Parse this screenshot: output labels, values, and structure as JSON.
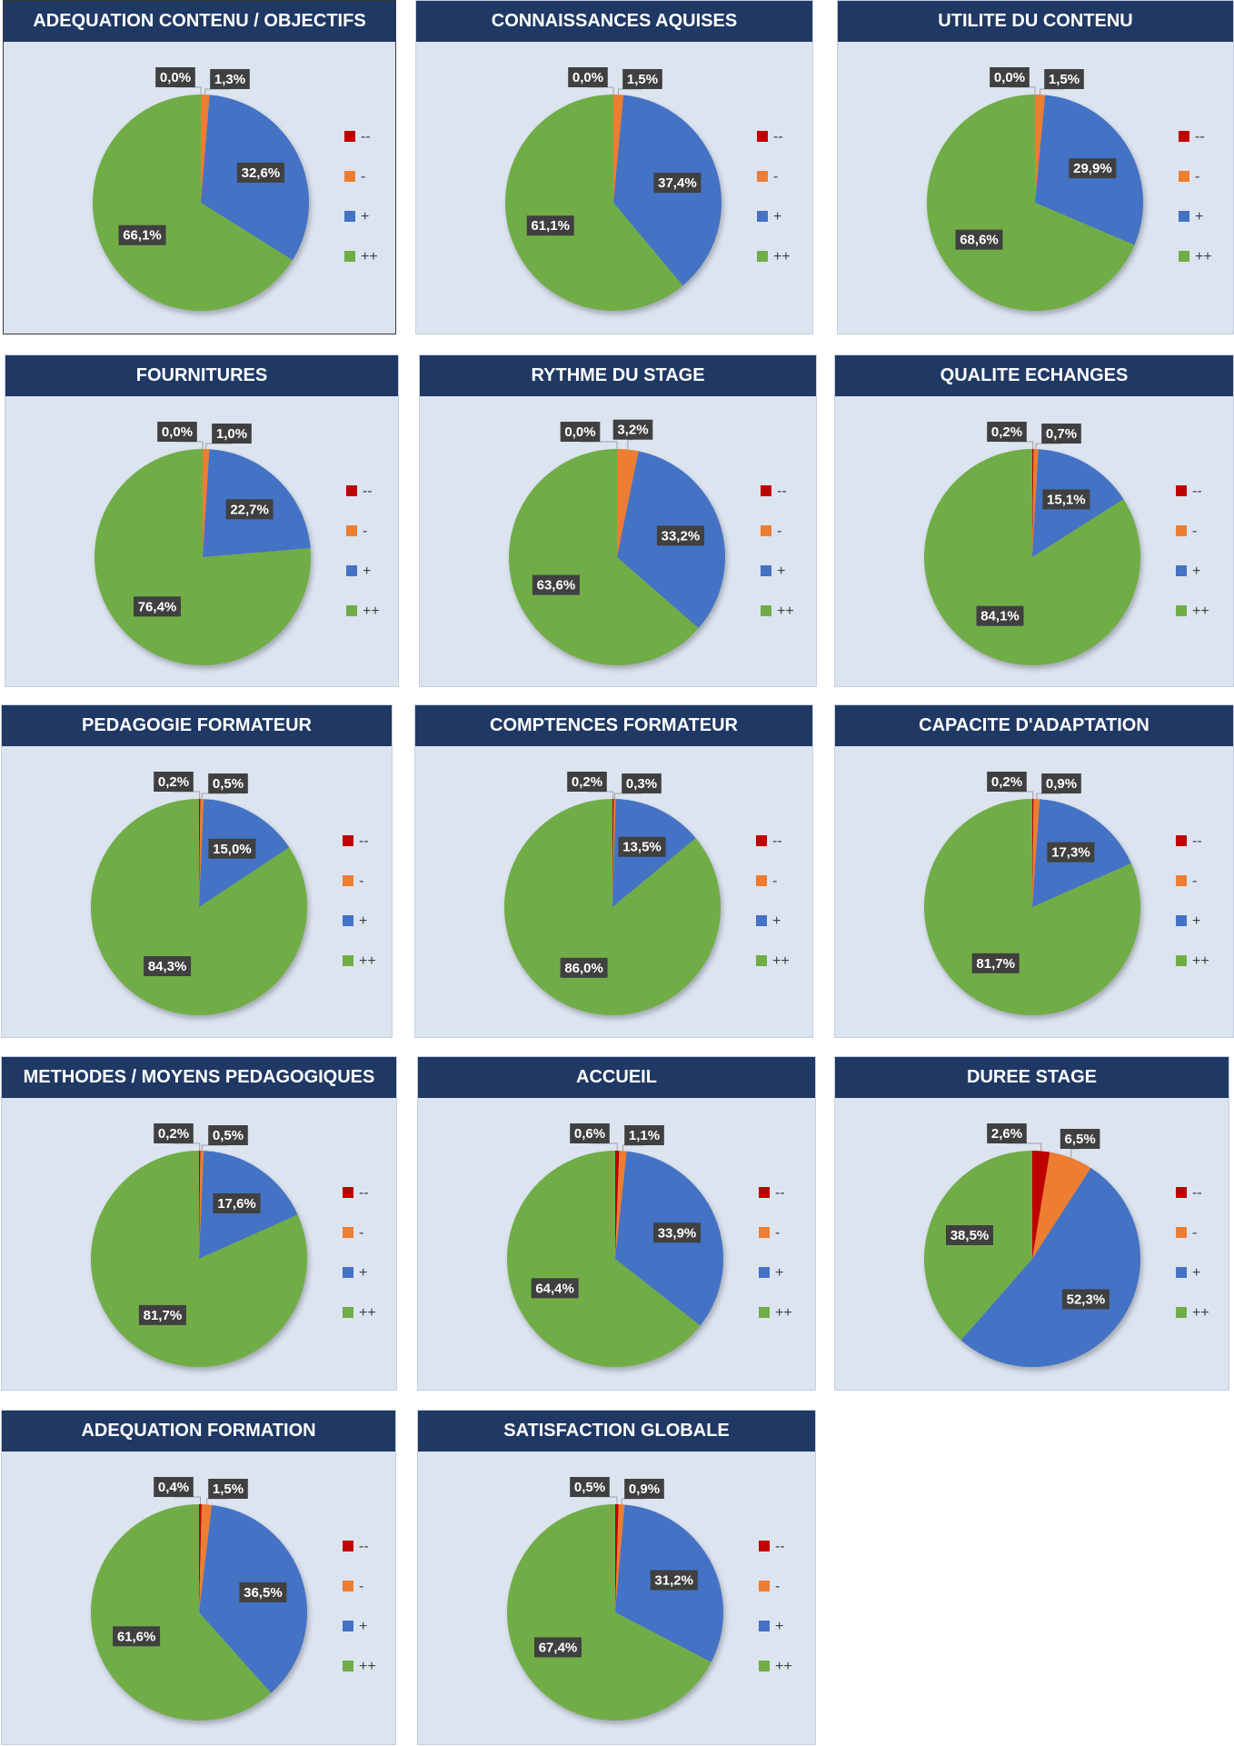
{
  "chart_data": [
    {
      "type": "pie",
      "title": "ADEQUATION CONTENU / OBJECTIFS",
      "categories": [
        "--",
        "-",
        "+",
        "++"
      ],
      "values": [
        0.0,
        1.3,
        32.6,
        66.1
      ],
      "labels": [
        "0,0%",
        "1,3%",
        "32,6%",
        "66,1%"
      ]
    },
    {
      "type": "pie",
      "title": "CONNAISSANCES AQUISES",
      "categories": [
        "--",
        "-",
        "+",
        "++"
      ],
      "values": [
        0.0,
        1.5,
        37.4,
        61.1
      ],
      "labels": [
        "0,0%",
        "1,5%",
        "37,4%",
        "61,1%"
      ]
    },
    {
      "type": "pie",
      "title": "UTILITE DU CONTENU",
      "categories": [
        "--",
        "-",
        "+",
        "++"
      ],
      "values": [
        0.0,
        1.5,
        29.9,
        68.6
      ],
      "labels": [
        "0,0%",
        "1,5%",
        "29,9%",
        "68,6%"
      ]
    },
    {
      "type": "pie",
      "title": "FOURNITURES",
      "categories": [
        "--",
        "-",
        "+",
        "++"
      ],
      "values": [
        0.0,
        1.0,
        22.7,
        76.4
      ],
      "labels": [
        "0,0%",
        "1,0%",
        "22,7%",
        "76,4%"
      ]
    },
    {
      "type": "pie",
      "title": "RYTHME DU STAGE",
      "categories": [
        "--",
        "-",
        "+",
        "++"
      ],
      "values": [
        0.0,
        3.2,
        33.2,
        63.6
      ],
      "labels": [
        "0,0%",
        "3,2%",
        "33,2%",
        "63,6%"
      ]
    },
    {
      "type": "pie",
      "title": "QUALITE ECHANGES",
      "categories": [
        "--",
        "-",
        "+",
        "++"
      ],
      "values": [
        0.2,
        0.7,
        15.1,
        84.1
      ],
      "labels": [
        "0,2%",
        "0,7%",
        "15,1%",
        "84,1%"
      ]
    },
    {
      "type": "pie",
      "title": "PEDAGOGIE FORMATEUR",
      "categories": [
        "--",
        "-",
        "+",
        "++"
      ],
      "values": [
        0.2,
        0.5,
        15.0,
        84.3
      ],
      "labels": [
        "0,2%",
        "0,5%",
        "15,0%",
        "84,3%"
      ]
    },
    {
      "type": "pie",
      "title": "COMPTENCES FORMATEUR",
      "categories": [
        "--",
        "-",
        "+",
        "++"
      ],
      "values": [
        0.2,
        0.3,
        13.5,
        86.0
      ],
      "labels": [
        "0,2%",
        "0,3%",
        "13,5%",
        "86,0%"
      ]
    },
    {
      "type": "pie",
      "title": "CAPACITE D'ADAPTATION",
      "categories": [
        "--",
        "-",
        "+",
        "++"
      ],
      "values": [
        0.2,
        0.9,
        17.3,
        81.7
      ],
      "labels": [
        "0,2%",
        "0,9%",
        "17,3%",
        "81,7%"
      ]
    },
    {
      "type": "pie",
      "title": "METHODES / MOYENS PEDAGOGIQUES",
      "categories": [
        "--",
        "-",
        "+",
        "++"
      ],
      "values": [
        0.2,
        0.5,
        17.6,
        81.7
      ],
      "labels": [
        "0,2%",
        "0,5%",
        "17,6%",
        "81,7%"
      ]
    },
    {
      "type": "pie",
      "title": "ACCUEIL",
      "categories": [
        "--",
        "-",
        "+",
        "++"
      ],
      "values": [
        0.6,
        1.1,
        33.9,
        64.4
      ],
      "labels": [
        "0,6%",
        "1,1%",
        "33,9%",
        "64,4%"
      ]
    },
    {
      "type": "pie",
      "title": "DUREE STAGE",
      "categories": [
        "--",
        "-",
        "+",
        "++"
      ],
      "values": [
        2.6,
        6.5,
        52.3,
        38.5
      ],
      "labels": [
        "2,6%",
        "6,5%",
        "52,3%",
        "38,5%"
      ]
    },
    {
      "type": "pie",
      "title": "ADEQUATION FORMATION",
      "categories": [
        "--",
        "-",
        "+",
        "++"
      ],
      "values": [
        0.4,
        1.5,
        36.5,
        61.6
      ],
      "labels": [
        "0,4%",
        "1,5%",
        "36,5%",
        "61,6%"
      ]
    },
    {
      "type": "pie",
      "title": "SATISFACTION GLOBALE",
      "categories": [
        "--",
        "-",
        "+",
        "++"
      ],
      "values": [
        0.5,
        0.9,
        31.2,
        67.4
      ],
      "labels": [
        "0,5%",
        "0,9%",
        "31,2%",
        "67,4%"
      ]
    }
  ],
  "colors": {
    "--": "#c00000",
    "-": "#ed7d31",
    "+": "#4472c4",
    "++": "#70ad47"
  }
}
